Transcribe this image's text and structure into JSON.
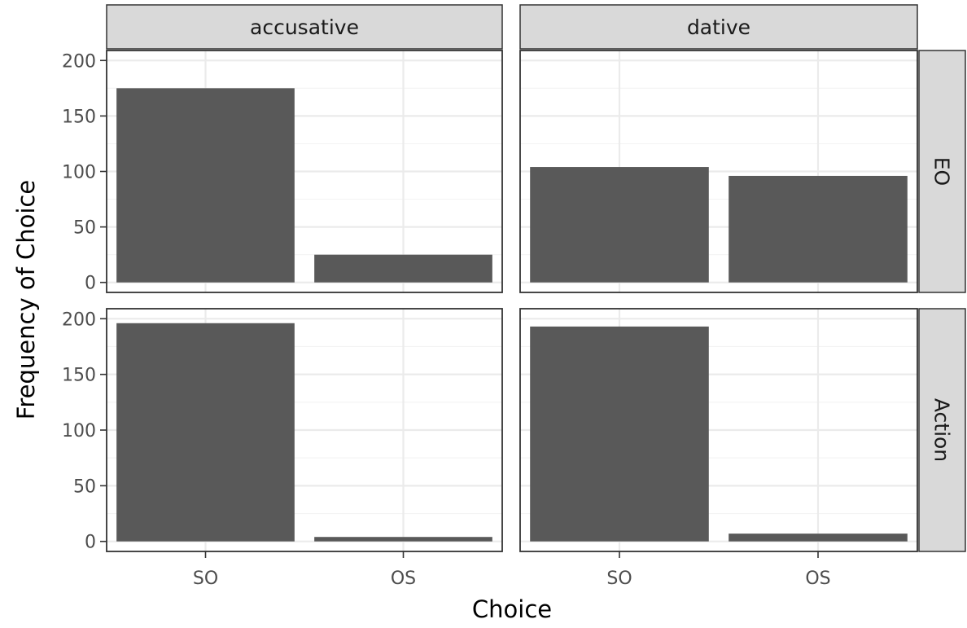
{
  "chart_data": {
    "type": "bar",
    "xlabel": "Choice",
    "ylabel": "Frequency of Choice",
    "categories": [
      "SO",
      "OS"
    ],
    "ylim": [
      0,
      200
    ],
    "y_ticks": [
      0,
      50,
      100,
      150,
      200
    ],
    "grid": true,
    "bar_color": "#595959",
    "facet_columns": [
      "accusative",
      "dative"
    ],
    "facet_rows": [
      "EO",
      "Action"
    ],
    "panels": [
      {
        "row": "EO",
        "column": "accusative",
        "values": [
          175,
          25
        ]
      },
      {
        "row": "EO",
        "column": "dative",
        "values": [
          104,
          96
        ]
      },
      {
        "row": "Action",
        "column": "accusative",
        "values": [
          196,
          4
        ]
      },
      {
        "row": "Action",
        "column": "dative",
        "values": [
          193,
          7
        ]
      }
    ]
  }
}
